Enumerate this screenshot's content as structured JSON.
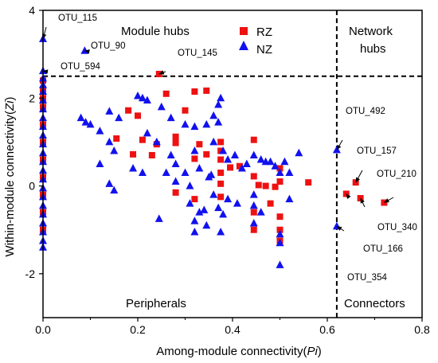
{
  "chart_data": {
    "type": "scatter",
    "xlabel": "Among-module connectivity(Pi)",
    "xlabel_parts": {
      "prefix": "Among-module connectivity(",
      "var": "Pi",
      "suffix": ")"
    },
    "ylabel": "Within-module connectivity(Zi)",
    "ylabel_parts": {
      "prefix": "Within-module connectivity(",
      "var": "Zi",
      "suffix": ")"
    },
    "xlim": [
      0,
      0.8
    ],
    "ylim": [
      -3,
      4
    ],
    "x_ticks": [
      0.0,
      0.2,
      0.4,
      0.6,
      0.8
    ],
    "x_tick_labels": [
      "0.0",
      "0.2",
      "0.4",
      "0.6",
      "0.8"
    ],
    "y_ticks": [
      -2,
      0,
      2,
      4
    ],
    "y_tick_labels": [
      "-2",
      "0",
      "2",
      "4"
    ],
    "thresholds": {
      "pi": 0.62,
      "zi": 2.5
    },
    "legend_placement": "top-center",
    "region_labels": {
      "module_hubs": "Module hubs",
      "network_hubs_1": "Network",
      "network_hubs_2": "hubs",
      "peripherals": "Peripherals",
      "connectors": "Connectors"
    },
    "series": [
      {
        "name": "RZ",
        "marker": "square",
        "color": "#ee1111",
        "points": [
          [
            0.245,
            2.55
          ],
          [
            0.26,
            2.1
          ],
          [
            0.18,
            1.72
          ],
          [
            0.2,
            1.6
          ],
          [
            0.3,
            1.72
          ],
          [
            0.32,
            2.15
          ],
          [
            0.345,
            2.17
          ],
          [
            0.28,
            1.12
          ],
          [
            0.155,
            1.08
          ],
          [
            0.21,
            1.05
          ],
          [
            0.24,
            0.95
          ],
          [
            0.28,
            0.98
          ],
          [
            0.33,
            0.95
          ],
          [
            0.375,
            1.0
          ],
          [
            0.375,
            0.8
          ],
          [
            0.19,
            0.72
          ],
          [
            0.23,
            0.7
          ],
          [
            0.32,
            0.62
          ],
          [
            0.345,
            0.72
          ],
          [
            0.375,
            0.6
          ],
          [
            0.375,
            0.3
          ],
          [
            0.395,
            0.42
          ],
          [
            0.445,
            1.05
          ],
          [
            0.445,
            0.22
          ],
          [
            0.455,
            0.02
          ],
          [
            0.47,
            0.0
          ],
          [
            0.49,
            -0.02
          ],
          [
            0.5,
            0.1
          ],
          [
            0.5,
            0.4
          ],
          [
            0.415,
            0.45
          ],
          [
            0.32,
            -0.3
          ],
          [
            0.28,
            -0.15
          ],
          [
            0.375,
            -0.25
          ],
          [
            0.445,
            -0.6
          ],
          [
            0.48,
            -0.4
          ],
          [
            0.5,
            -0.7
          ],
          [
            0.5,
            -1.0
          ],
          [
            0.5,
            -1.25
          ],
          [
            0.445,
            -1.0
          ],
          [
            0.56,
            0.08
          ],
          [
            0.375,
            0.05
          ],
          [
            0.0,
            2.4
          ],
          [
            0.0,
            2.2
          ],
          [
            0.0,
            2.0
          ],
          [
            0.0,
            1.8
          ],
          [
            0.0,
            1.4
          ],
          [
            0.0,
            1.0
          ],
          [
            0.0,
            0.6
          ],
          [
            0.0,
            0.2
          ],
          [
            0.0,
            -0.2
          ],
          [
            0.0,
            -0.6
          ],
          [
            0.0,
            -1.0
          ],
          [
            0.64,
            -0.18
          ],
          [
            0.66,
            0.08
          ],
          [
            0.67,
            -0.28
          ],
          [
            0.72,
            -0.38
          ]
        ]
      },
      {
        "name": "NZ",
        "marker": "triangle",
        "color": "#1111ee",
        "points": [
          [
            0.0,
            3.35
          ],
          [
            0.088,
            3.08
          ],
          [
            0.0,
            2.62
          ],
          [
            0.08,
            1.55
          ],
          [
            0.09,
            1.45
          ],
          [
            0.1,
            1.4
          ],
          [
            0.12,
            1.25
          ],
          [
            0.14,
            1.7
          ],
          [
            0.16,
            1.55
          ],
          [
            0.2,
            2.05
          ],
          [
            0.21,
            2.0
          ],
          [
            0.22,
            1.95
          ],
          [
            0.25,
            1.8
          ],
          [
            0.27,
            1.55
          ],
          [
            0.3,
            1.4
          ],
          [
            0.32,
            1.35
          ],
          [
            0.345,
            1.4
          ],
          [
            0.37,
            1.85
          ],
          [
            0.375,
            2.0
          ],
          [
            0.37,
            1.45
          ],
          [
            0.36,
            1.6
          ],
          [
            0.14,
            1.0
          ],
          [
            0.15,
            0.8
          ],
          [
            0.12,
            0.5
          ],
          [
            0.14,
            0.05
          ],
          [
            0.15,
            -0.1
          ],
          [
            0.19,
            0.4
          ],
          [
            0.21,
            0.3
          ],
          [
            0.22,
            1.2
          ],
          [
            0.24,
            1.0
          ],
          [
            0.27,
            0.7
          ],
          [
            0.28,
            0.5
          ],
          [
            0.3,
            0.3
          ],
          [
            0.32,
            0.8
          ],
          [
            0.33,
            0.4
          ],
          [
            0.35,
            0.2
          ],
          [
            0.36,
            1.0
          ],
          [
            0.38,
            0.8
          ],
          [
            0.39,
            0.6
          ],
          [
            0.405,
            0.7
          ],
          [
            0.42,
            0.4
          ],
          [
            0.43,
            0.5
          ],
          [
            0.445,
            0.7
          ],
          [
            0.46,
            0.6
          ],
          [
            0.47,
            0.55
          ],
          [
            0.48,
            0.55
          ],
          [
            0.49,
            0.45
          ],
          [
            0.5,
            0.3
          ],
          [
            0.51,
            0.55
          ],
          [
            0.52,
            0.3
          ],
          [
            0.54,
            0.75
          ],
          [
            0.31,
            -0.4
          ],
          [
            0.32,
            -0.8
          ],
          [
            0.33,
            -0.6
          ],
          [
            0.34,
            -0.55
          ],
          [
            0.36,
            -0.2
          ],
          [
            0.37,
            -0.5
          ],
          [
            0.38,
            -0.65
          ],
          [
            0.39,
            -0.3
          ],
          [
            0.41,
            -0.4
          ],
          [
            0.445,
            -0.2
          ],
          [
            0.445,
            -0.45
          ],
          [
            0.445,
            -0.85
          ],
          [
            0.46,
            -0.6
          ],
          [
            0.5,
            -1.1
          ],
          [
            0.5,
            -1.3
          ],
          [
            0.5,
            -1.8
          ],
          [
            0.52,
            -0.3
          ],
          [
            0.245,
            -0.75
          ],
          [
            0.32,
            -1.05
          ],
          [
            0.345,
            -0.9
          ],
          [
            0.375,
            -1.05
          ],
          [
            0.355,
            0.25
          ],
          [
            0.31,
            0.0
          ],
          [
            0.28,
            0.1
          ],
          [
            0.26,
            0.3
          ],
          [
            0.62,
            0.82
          ],
          [
            0.62,
            -0.92
          ],
          [
            0.0,
            2.45
          ],
          [
            0.0,
            2.3
          ],
          [
            0.0,
            2.15
          ],
          [
            0.0,
            1.95
          ],
          [
            0.0,
            1.75
          ],
          [
            0.0,
            1.55
          ],
          [
            0.0,
            1.35
          ],
          [
            0.0,
            1.15
          ],
          [
            0.0,
            0.95
          ],
          [
            0.0,
            0.75
          ],
          [
            0.0,
            0.55
          ],
          [
            0.0,
            0.35
          ],
          [
            0.0,
            0.15
          ],
          [
            0.0,
            -0.05
          ],
          [
            0.0,
            -0.25
          ],
          [
            0.0,
            -0.45
          ],
          [
            0.0,
            -0.65
          ],
          [
            0.0,
            -0.85
          ],
          [
            0.0,
            -1.05
          ],
          [
            0.0,
            -1.25
          ],
          [
            0.0,
            -1.4
          ]
        ]
      }
    ],
    "annotations": [
      {
        "text": "OTU_115",
        "x": 0.0,
        "y": 3.35
      },
      {
        "text": "OTU_90",
        "x": 0.088,
        "y": 3.08
      },
      {
        "text": "OTU_594",
        "x": 0.0,
        "y": 2.62
      },
      {
        "text": "OTU_145",
        "x": 0.245,
        "y": 2.55
      },
      {
        "text": "OTU_492",
        "x": 0.62,
        "y": 0.82
      },
      {
        "text": "OTU_157",
        "x": 0.66,
        "y": 0.08
      },
      {
        "text": "OTU_210",
        "x": 0.72,
        "y": -0.38
      },
      {
        "text": "OTU_340",
        "x": 0.67,
        "y": -0.28
      },
      {
        "text": "OTU_166",
        "x": 0.64,
        "y": -0.18
      },
      {
        "text": "OTU_354",
        "x": 0.62,
        "y": -0.92
      }
    ]
  }
}
